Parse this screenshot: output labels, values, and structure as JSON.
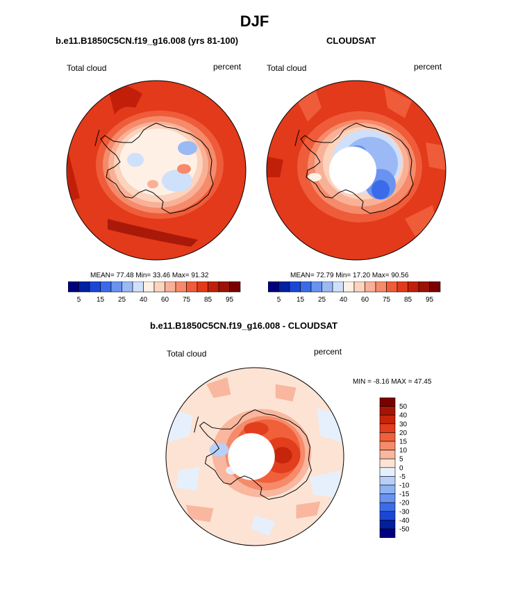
{
  "page_title": "DJF",
  "panel_left": {
    "case_title": "b.e11.B1850C5CN.f19_g16.008 (yrs 81-100)",
    "variable": "Total cloud",
    "units": "percent",
    "stats": "MEAN=  77.48  Min=  33.46  Max=  91.32"
  },
  "panel_right": {
    "case_title": "CLOUDSAT",
    "variable": "Total cloud",
    "units": "percent",
    "stats": "MEAN=  72.79  Min=  17.20  Max=  90.56"
  },
  "panel_diff": {
    "case_title": "b.e11.B1850C5CN.f19_g16.008 - CLOUDSAT",
    "variable": "Total cloud",
    "units": "percent",
    "stats": "MIN =  -8.16 MAX =  47.45"
  },
  "colorbar_horizontal": {
    "ticks": [
      "5",
      "15",
      "25",
      "40",
      "60",
      "75",
      "85",
      "95"
    ],
    "colors": [
      "#00007f",
      "#0020a0",
      "#1a46d8",
      "#3a6be8",
      "#6a93f0",
      "#9bb9f5",
      "#cfe0fb",
      "#fff0e6",
      "#fcd3bd",
      "#f8b197",
      "#f58b6a",
      "#ef5c3a",
      "#e23a1a",
      "#c21f0a",
      "#9a1305",
      "#7a0000"
    ]
  },
  "colorbar_vertical": {
    "ticks": [
      "50",
      "40",
      "30",
      "20",
      "15",
      "10",
      "5",
      "0",
      "-5",
      "-10",
      "-15",
      "-20",
      "-30",
      "-40",
      "-50"
    ],
    "colors": [
      "#7a0000",
      "#a51505",
      "#c7240c",
      "#e23d1c",
      "#f0603a",
      "#f58b6a",
      "#f8b79e",
      "#fde3d4",
      "#e6f0fd",
      "#b8d0f7",
      "#8eb3f2",
      "#6a93f0",
      "#3d6cea",
      "#1a46d8",
      "#0020a0",
      "#00007f"
    ]
  }
}
